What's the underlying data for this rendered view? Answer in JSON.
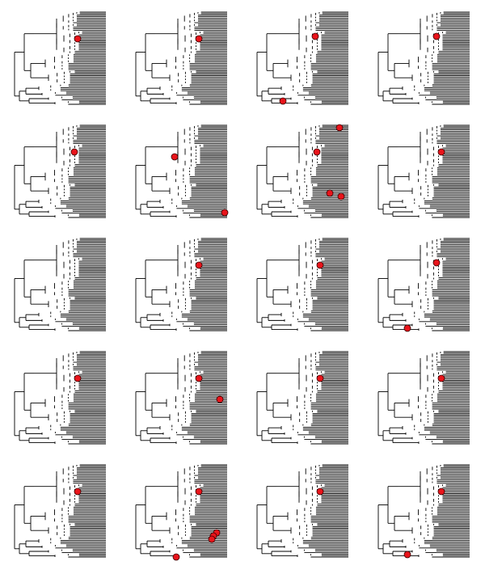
{
  "figure": {
    "rows": 5,
    "cols": 4,
    "tree_style": "rectangular cladogram, identical topology in every panel",
    "line_color": "#000000",
    "marker_fill": "#e8141b",
    "marker_stroke": "#3a0000",
    "panels": [
      {
        "markers": [
          "clade_a"
        ]
      },
      {
        "markers": [
          "clade_a"
        ]
      },
      {
        "markers": [
          "clade_b",
          "root_lower"
        ]
      },
      {
        "markers": [
          "clade_b"
        ]
      },
      {
        "markers": [
          "clade_c"
        ]
      },
      {
        "markers": [
          "clade_d",
          "tip_bottom"
        ]
      },
      {
        "markers": [
          "tip_top",
          "clade_c",
          "lower_mid",
          "lower_right"
        ]
      },
      {
        "markers": [
          "clade_a"
        ]
      },
      {
        "markers": []
      },
      {
        "markers": [
          "clade_a"
        ]
      },
      {
        "markers": [
          "clade_a"
        ]
      },
      {
        "markers": [
          "clade_b",
          "root_lower2"
        ]
      },
      {
        "markers": [
          "clade_a"
        ]
      },
      {
        "markers": [
          "clade_a",
          "mid_right"
        ]
      },
      {
        "markers": [
          "clade_a"
        ]
      },
      {
        "markers": [
          "clade_a"
        ]
      },
      {
        "markers": [
          "clade_a"
        ]
      },
      {
        "markers": [
          "clade_a",
          "lower_cluster1",
          "lower_cluster2",
          "lower_cluster3",
          "root_bottom"
        ]
      },
      {
        "markers": [
          "clade_a"
        ]
      },
      {
        "markers": [
          "clade_a",
          "root_lower2"
        ]
      }
    ]
  }
}
